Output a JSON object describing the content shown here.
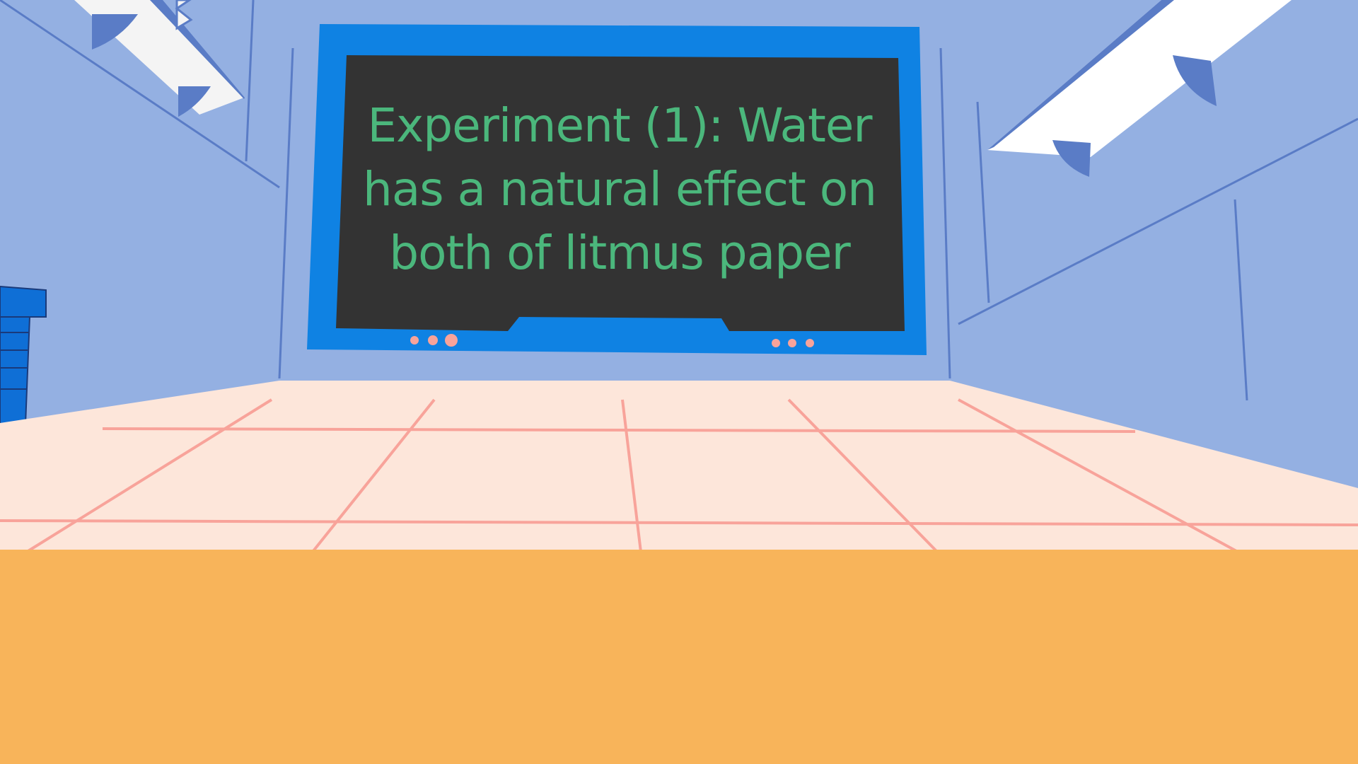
{
  "board": {
    "text": "Experiment (1): Water has a natural effect on both of litmus paper"
  },
  "colors": {
    "wall": "#94b0e2",
    "wall_line": "#5a7cc6",
    "screen_frame": "#0f82e3",
    "screen": "#333333",
    "text": "#4bb77c",
    "indicator_dots": "#f8a39a",
    "floor": "#fde6da",
    "floor_line": "#f8a39a",
    "desk": "#f8b45a",
    "lamp": "#f4f4f4",
    "lamp_bracket": "#5a7cc6",
    "cabinet": "#0f6fd6"
  }
}
